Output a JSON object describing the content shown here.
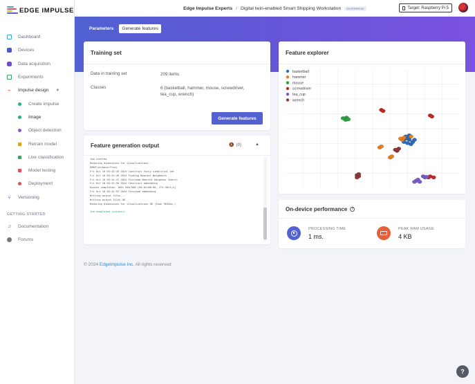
{
  "app": {
    "logo_text": "EDGE IMPULSE",
    "colors": {
      "accent": "#5461d0",
      "hero_start": "#5061d0",
      "hero_end": "#7a52e0"
    }
  },
  "sidebar": {
    "items": [
      {
        "label": "Dashboard",
        "icon": "monitor-icon",
        "color": "#3fa9c9"
      },
      {
        "label": "Devices",
        "icon": "devices-icon",
        "color": "#4a5bc4"
      },
      {
        "label": "Data acquisition",
        "icon": "database-icon",
        "color": "#6b52c9"
      },
      {
        "label": "Experiments",
        "icon": "table-icon",
        "color": "#3aa55c"
      },
      {
        "label": "Impulse design",
        "icon": "impulse-icon",
        "color": "#e05a4a"
      }
    ],
    "sub_items": [
      {
        "label": "Create impulse",
        "color": "#2ab07a"
      },
      {
        "label": "Image",
        "color": "#2ab07a"
      },
      {
        "label": "Object detection",
        "color": "#7b5cc8"
      },
      {
        "label": "Retrain model",
        "color": "#e0a020"
      },
      {
        "label": "Live classification",
        "color": "#3aa55c"
      },
      {
        "label": "Model testing",
        "color": "#e0505a"
      },
      {
        "label": "Deployment",
        "color": "#e0505a"
      }
    ],
    "versioning": {
      "label": "Versioning",
      "color": "#4a5bc4"
    },
    "section_title": "GETTING STARTED",
    "getting_started": [
      {
        "label": "Documentation",
        "icon": "book-icon"
      },
      {
        "label": "Forums",
        "icon": "forum-icon"
      }
    ]
  },
  "topbar": {
    "project_owner": "Edge Impulse Experts",
    "separator": "/",
    "project_name": "Digital twin-enabled Smart Shipping Workstation",
    "version_badge": "ENTERPRISE",
    "target_label": "Target: Raspberry Pi 5"
  },
  "tabs": [
    {
      "label": "Parameters",
      "active": false
    },
    {
      "label": "Generate features",
      "active": true
    }
  ],
  "training_set": {
    "title": "Training set",
    "rows": [
      {
        "key": "Data in training set",
        "value": "209 items"
      },
      {
        "key": "Classes",
        "value": "6 (basketball, hammer, mouse, screwdriver, tea_cup, wrench)"
      }
    ],
    "button_label": "Generate features"
  },
  "feature_output": {
    "title": "Feature generation output",
    "notify_count": "(0)",
    "log_lines": [
      "Job started",
      "Reducing dimensions for visualizations...",
      "UMAP(verbose=True)",
      "Fri Oct 18 05:41:45 2024 Construct fuzzy simplicial set",
      "Fri Oct 18 05:41:46 2024 Finding Nearest Neighbors",
      "Fri Oct 18 05:41:47 2024 Finished Nearest Neighbor Search",
      "Fri Oct 18 05:41:50 2024 Construct embedding",
      "Epochs completed: 100% 500/500 [00:02<00:00, 171.56it/s]",
      "Fri Oct 18 05:41:53 2024 Finished embedding",
      "Writing output files...",
      "Writing output files OK",
      "Reducing dimensions for visualizations OK (took 9634ms.)"
    ],
    "done_line": "Job completed (success)"
  },
  "feature_explorer": {
    "title": "Feature explorer"
  },
  "chart_data": {
    "type": "scatter",
    "title": "Feature explorer",
    "xlabel": "",
    "ylabel": "",
    "xlim": [
      0,
      1
    ],
    "ylim": [
      0,
      1
    ],
    "grid": true,
    "legend_position": "top-left",
    "series": [
      {
        "name": "basketball",
        "color": "#2f6db5",
        "points": [
          [
            0.69,
            0.41
          ],
          [
            0.71,
            0.4
          ],
          [
            0.71,
            0.44
          ],
          [
            0.72,
            0.36
          ],
          [
            0.73,
            0.38
          ],
          [
            0.68,
            0.38
          ],
          [
            0.7,
            0.37
          ],
          [
            0.74,
            0.4
          ],
          [
            0.71,
            0.42
          ],
          [
            0.69,
            0.43
          ]
        ]
      },
      {
        "name": "hammer",
        "color": "#e67e22",
        "points": [
          [
            0.54,
            0.33
          ],
          [
            0.55,
            0.34
          ],
          [
            0.6,
            0.24
          ],
          [
            0.61,
            0.25
          ],
          [
            0.67,
            0.4
          ],
          [
            0.66,
            0.41
          ],
          [
            0.68,
            0.42
          ],
          [
            0.72,
            0.43
          ]
        ]
      },
      {
        "name": "mouse",
        "color": "#2aa140",
        "points": [
          [
            0.34,
            0.59
          ],
          [
            0.35,
            0.6
          ],
          [
            0.345,
            0.58
          ],
          [
            0.36,
            0.585
          ],
          [
            0.33,
            0.595
          ]
        ]
      },
      {
        "name": "screwdriver",
        "color": "#c0292b",
        "points": [
          [
            0.55,
            0.67
          ],
          [
            0.56,
            0.66
          ],
          [
            0.83,
            0.62
          ],
          [
            0.84,
            0.61
          ],
          [
            0.82,
            0.06
          ],
          [
            0.83,
            0.07
          ],
          [
            0.85,
            0.06
          ]
        ]
      },
      {
        "name": "tea_cup",
        "color": "#7b5cc8",
        "points": [
          [
            0.75,
            0.03
          ],
          [
            0.76,
            0.04
          ],
          [
            0.77,
            0.02
          ],
          [
            0.74,
            0.02
          ],
          [
            0.79,
            0.07
          ],
          [
            0.8,
            0.06
          ],
          [
            0.81,
            0.065
          ]
        ]
      },
      {
        "name": "wrench",
        "color": "#8e3a3a",
        "points": [
          [
            0.41,
            0.08
          ],
          [
            0.42,
            0.07
          ],
          [
            0.41,
            0.06
          ],
          [
            0.42,
            0.09
          ],
          [
            0.63,
            0.31
          ],
          [
            0.64,
            0.3
          ],
          [
            0.65,
            0.32
          ],
          [
            0.64,
            0.31
          ]
        ]
      }
    ]
  },
  "on_device": {
    "title": "On-device performance",
    "metrics": [
      {
        "label": "PROCESSING TIME",
        "value": "1 ms.",
        "icon": "clock-icon",
        "color": "#5461d0"
      },
      {
        "label": "PEAK RAM USAGE",
        "value": "4 KB",
        "icon": "memory-icon",
        "color": "#e5603d"
      }
    ]
  },
  "footer": {
    "prefix": "© 2024",
    "company": "EdgeImpulse Inc.",
    "suffix": "All rights reserved"
  }
}
